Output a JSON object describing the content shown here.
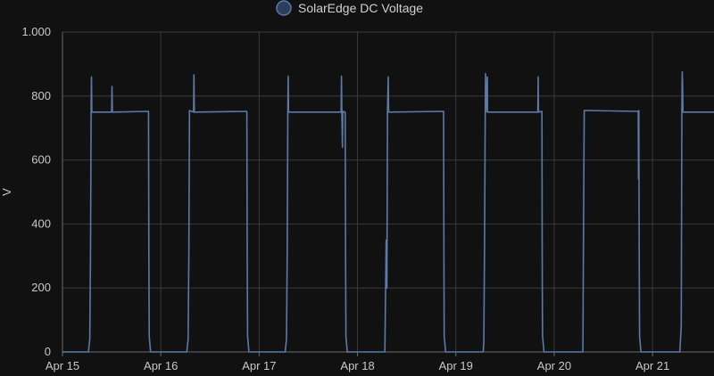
{
  "chart_data": {
    "type": "line",
    "title": "",
    "xlabel": "",
    "ylabel": "V",
    "ylim": [
      0,
      1000
    ],
    "y_ticks": [
      {
        "value": 0,
        "label": "0"
      },
      {
        "value": 200,
        "label": "200"
      },
      {
        "value": 400,
        "label": "400"
      },
      {
        "value": 600,
        "label": "600"
      },
      {
        "value": 800,
        "label": "800"
      },
      {
        "value": 1000,
        "label": "1.000"
      }
    ],
    "x_range": [
      "2024-04-15T00:00",
      "2024-04-21T15:00"
    ],
    "x_ticks": [
      {
        "value": "2024-04-15T00:00",
        "label": "Apr 15"
      },
      {
        "value": "2024-04-16T00:00",
        "label": "Apr 16"
      },
      {
        "value": "2024-04-17T00:00",
        "label": "Apr 17"
      },
      {
        "value": "2024-04-18T00:00",
        "label": "Apr 18"
      },
      {
        "value": "2024-04-19T00:00",
        "label": "Apr 19"
      },
      {
        "value": "2024-04-20T00:00",
        "label": "Apr 20"
      },
      {
        "value": "2024-04-21T00:00",
        "label": "Apr 21"
      }
    ],
    "grid": true,
    "legend": "top-center",
    "series": [
      {
        "name": "SolarEdge DC Voltage",
        "color": "#5b7aa8",
        "points": [
          [
            "2024-04-15T00:00",
            0
          ],
          [
            "2024-04-15T06:20",
            0
          ],
          [
            "2024-04-15T06:40",
            40
          ],
          [
            "2024-04-15T06:50",
            300
          ],
          [
            "2024-04-15T07:00",
            755
          ],
          [
            "2024-04-15T07:05",
            860
          ],
          [
            "2024-04-15T07:10",
            750
          ],
          [
            "2024-04-15T12:00",
            750
          ],
          [
            "2024-04-15T12:05",
            830
          ],
          [
            "2024-04-15T12:10",
            750
          ],
          [
            "2024-04-15T21:00",
            752
          ],
          [
            "2024-04-15T21:05",
            300
          ],
          [
            "2024-04-15T21:10",
            50
          ],
          [
            "2024-04-15T21:30",
            0
          ],
          [
            "2024-04-16T06:20",
            0
          ],
          [
            "2024-04-16T06:40",
            40
          ],
          [
            "2024-04-16T06:50",
            300
          ],
          [
            "2024-04-16T07:00",
            755
          ],
          [
            "2024-04-16T08:00",
            750
          ],
          [
            "2024-04-16T08:05",
            866
          ],
          [
            "2024-04-16T08:10",
            750
          ],
          [
            "2024-04-16T21:00",
            752
          ],
          [
            "2024-04-16T21:05",
            300
          ],
          [
            "2024-04-16T21:10",
            50
          ],
          [
            "2024-04-16T21:30",
            0
          ],
          [
            "2024-04-17T06:20",
            0
          ],
          [
            "2024-04-17T06:40",
            40
          ],
          [
            "2024-04-17T06:50",
            300
          ],
          [
            "2024-04-17T07:00",
            755
          ],
          [
            "2024-04-17T07:05",
            862
          ],
          [
            "2024-04-17T07:10",
            750
          ],
          [
            "2024-04-17T20:00",
            750
          ],
          [
            "2024-04-17T20:05",
            862
          ],
          [
            "2024-04-17T20:10",
            750
          ],
          [
            "2024-04-17T20:20",
            640
          ],
          [
            "2024-04-17T20:25",
            752
          ],
          [
            "2024-04-17T21:00",
            750
          ],
          [
            "2024-04-17T21:05",
            300
          ],
          [
            "2024-04-17T21:10",
            50
          ],
          [
            "2024-04-17T21:30",
            0
          ],
          [
            "2024-04-18T06:40",
            0
          ],
          [
            "2024-04-18T07:00",
            350
          ],
          [
            "2024-04-18T07:10",
            200
          ],
          [
            "2024-04-18T07:20",
            755
          ],
          [
            "2024-04-18T07:30",
            860
          ],
          [
            "2024-04-18T07:35",
            750
          ],
          [
            "2024-04-18T21:00",
            752
          ],
          [
            "2024-04-18T21:05",
            300
          ],
          [
            "2024-04-18T21:10",
            50
          ],
          [
            "2024-04-18T21:30",
            0
          ],
          [
            "2024-04-19T06:40",
            0
          ],
          [
            "2024-04-19T06:50",
            30
          ],
          [
            "2024-04-19T07:00",
            340
          ],
          [
            "2024-04-19T07:10",
            755
          ],
          [
            "2024-04-19T07:15",
            870
          ],
          [
            "2024-04-19T07:20",
            750
          ],
          [
            "2024-04-19T07:40",
            860
          ],
          [
            "2024-04-19T07:45",
            750
          ],
          [
            "2024-04-19T20:00",
            750
          ],
          [
            "2024-04-19T20:05",
            860
          ],
          [
            "2024-04-19T20:10",
            750
          ],
          [
            "2024-04-19T21:00",
            752
          ],
          [
            "2024-04-19T21:05",
            210
          ],
          [
            "2024-04-19T21:10",
            50
          ],
          [
            "2024-04-19T21:30",
            0
          ],
          [
            "2024-04-20T07:00",
            0
          ],
          [
            "2024-04-20T07:10",
            380
          ],
          [
            "2024-04-20T07:20",
            755
          ],
          [
            "2024-04-20T20:30",
            752
          ],
          [
            "2024-04-20T20:35",
            540
          ],
          [
            "2024-04-20T20:40",
            755
          ],
          [
            "2024-04-20T20:45",
            300
          ],
          [
            "2024-04-20T20:50",
            50
          ],
          [
            "2024-04-20T21:10",
            0
          ],
          [
            "2024-04-21T06:40",
            0
          ],
          [
            "2024-04-21T07:00",
            80
          ],
          [
            "2024-04-21T07:10",
            752
          ],
          [
            "2024-04-21T07:15",
            876
          ],
          [
            "2024-04-21T07:20",
            840
          ],
          [
            "2024-04-21T07:25",
            750
          ],
          [
            "2024-04-21T15:00",
            750
          ]
        ]
      }
    ]
  }
}
